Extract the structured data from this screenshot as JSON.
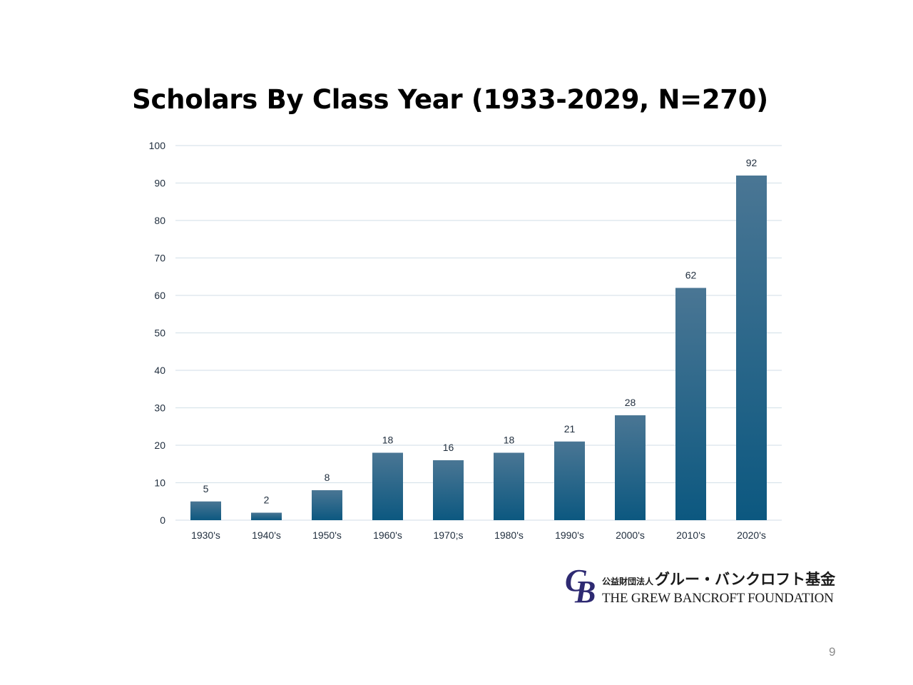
{
  "slide": {
    "title": "Scholars By Class Year (1933-2029, N=270)",
    "page_number": "9"
  },
  "logo": {
    "mark_g": "G",
    "mark_b": "B",
    "jp_small": "公益財団法人",
    "jp_large": "グルー・バンクロフト基金",
    "en": "THE GREW BANCROFT FOUNDATION"
  },
  "colors": {
    "bar_top": "#4a7694",
    "bar_bottom": "#0c5880",
    "grid": "#d9e4ec",
    "axis_text": "#1f2d3d",
    "logo_mark": "#2e2a72"
  },
  "chart_data": {
    "type": "bar",
    "title": "Scholars By Class Year (1933-2029, N=270)",
    "categories": [
      "1930's",
      "1940's",
      "1950's",
      "1960's",
      "1970;s",
      "1980's",
      "1990's",
      "2000's",
      "2010's",
      "2020's"
    ],
    "values": [
      5,
      2,
      8,
      18,
      16,
      18,
      21,
      28,
      62,
      92
    ],
    "data_labels": [
      "5",
      "2",
      "8",
      "18",
      "16",
      "18",
      "21",
      "28",
      "62",
      "92"
    ],
    "xlabel": "",
    "ylabel": "",
    "ylim": [
      0,
      100
    ],
    "yticks": [
      "0",
      "10",
      "20",
      "30",
      "40",
      "50",
      "60",
      "70",
      "80",
      "90",
      "100"
    ],
    "grid": true,
    "legend": "none"
  }
}
